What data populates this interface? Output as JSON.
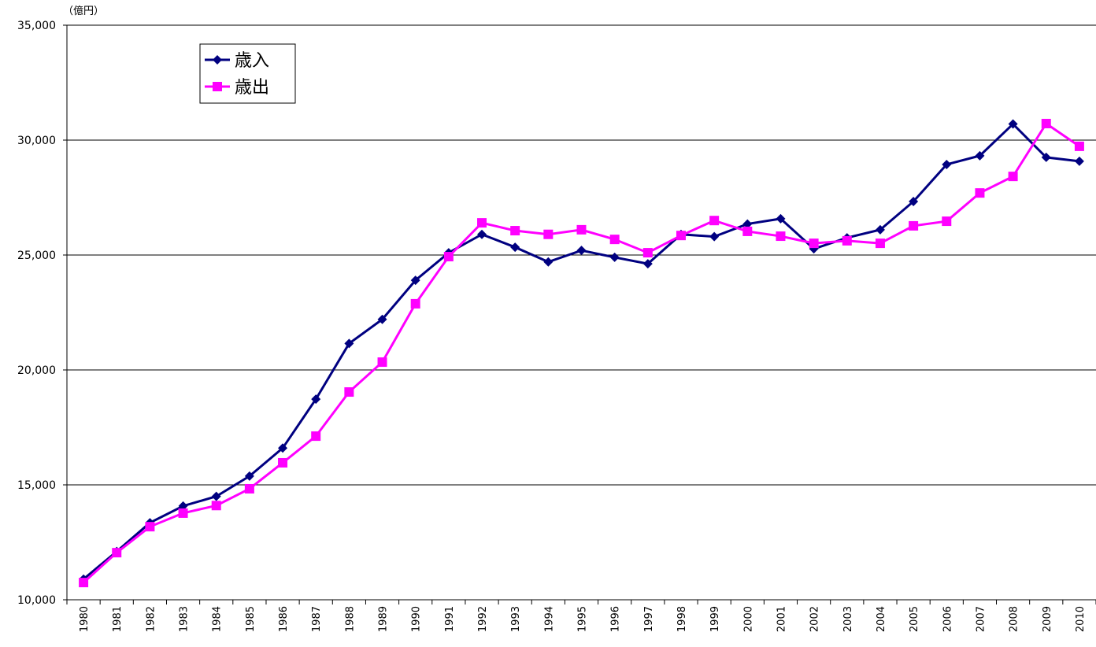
{
  "chart_data": {
    "type": "line",
    "unit_label": "（億円）",
    "categories": [
      "1980",
      "1981",
      "1982",
      "1983",
      "1984",
      "1985",
      "1986",
      "1987",
      "1988",
      "1989",
      "1990",
      "1991",
      "1992",
      "1993",
      "1994",
      "1995",
      "1996",
      "1997",
      "1998",
      "1999",
      "2000",
      "2001",
      "2002",
      "2003",
      "2004",
      "2005",
      "2006",
      "2007",
      "2008",
      "2009",
      "2010"
    ],
    "series": [
      {
        "name": "歳入",
        "color": "#000080",
        "marker": "diamond",
        "values": [
          10900,
          12100,
          13350,
          14080,
          14500,
          15380,
          16600,
          18730,
          21150,
          22200,
          23900,
          25100,
          25900,
          25340,
          24700,
          25200,
          24900,
          24620,
          25900,
          25800,
          26350,
          26580,
          25270,
          25750,
          26100,
          27330,
          28940,
          29320,
          30700,
          29250,
          29080
        ]
      },
      {
        "name": "歳出",
        "color": "#ff00ff",
        "marker": "square",
        "values": [
          10750,
          12050,
          13180,
          13770,
          14100,
          14830,
          15960,
          17120,
          19040,
          20340,
          22880,
          24930,
          26400,
          26060,
          25900,
          26100,
          25680,
          25100,
          25850,
          26500,
          26030,
          25820,
          25510,
          25620,
          25510,
          26270,
          26470,
          27700,
          28420,
          30720,
          29730
        ]
      }
    ],
    "ylim": [
      10000,
      35000
    ],
    "yticks": [
      {
        "value": 10000,
        "label": "10,000"
      },
      {
        "value": 15000,
        "label": "15,000"
      },
      {
        "value": 20000,
        "label": "20,000"
      },
      {
        "value": 25000,
        "label": "25,000"
      },
      {
        "value": 30000,
        "label": "30,000"
      },
      {
        "value": 35000,
        "label": "35,000"
      }
    ],
    "grid": true,
    "legend": "top-left"
  }
}
